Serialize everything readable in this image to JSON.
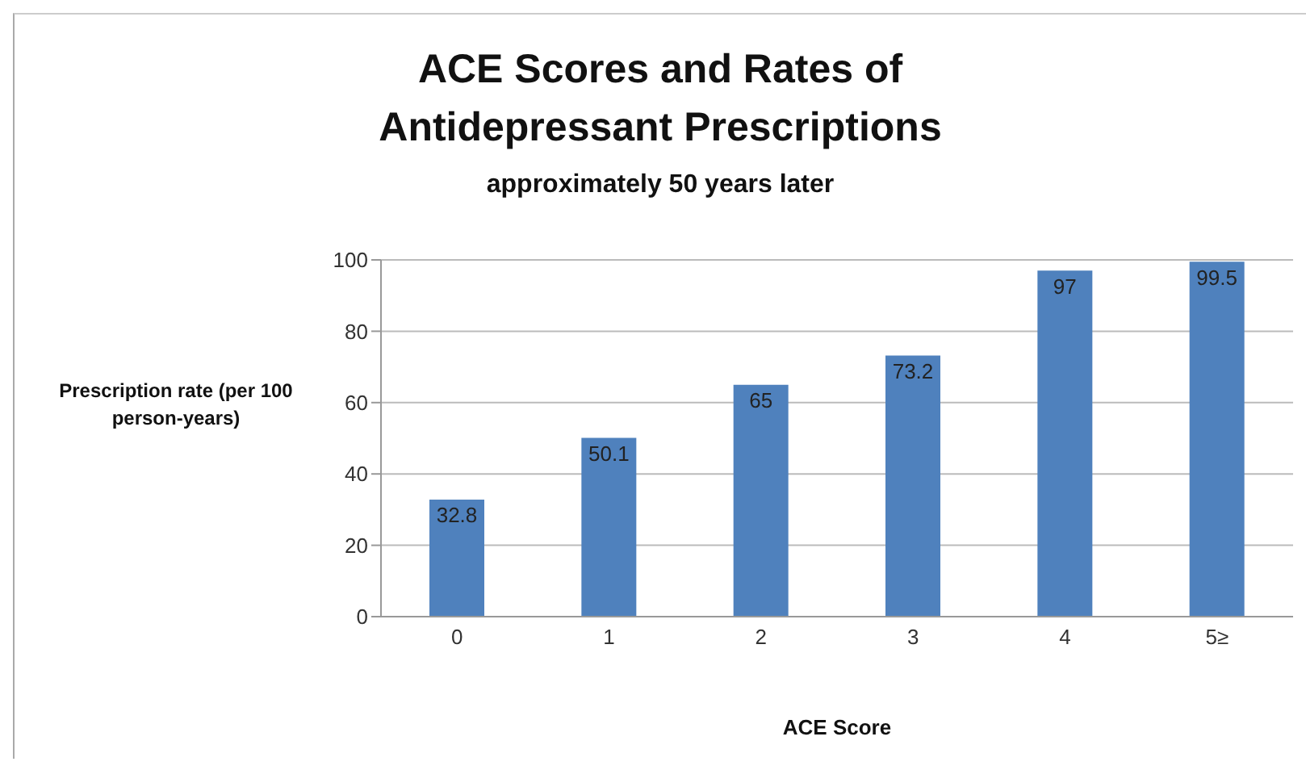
{
  "chart_data": {
    "type": "bar",
    "title": "ACE Scores and Rates of Antidepressant Prescriptions",
    "subtitle": "approximately 50 years later",
    "xlabel": "ACE Score",
    "ylabel": "Prescription rate (per 100 person-years)",
    "categories": [
      "0",
      "1",
      "2",
      "3",
      "4",
      "5≥"
    ],
    "values": [
      32.8,
      50.1,
      65,
      73.2,
      97,
      99.5
    ],
    "color": "#4f81bd",
    "ylim": [
      0,
      100
    ],
    "yticks": [
      0,
      20,
      40,
      60,
      80,
      100
    ],
    "grid": "y",
    "data_labels": true
  }
}
